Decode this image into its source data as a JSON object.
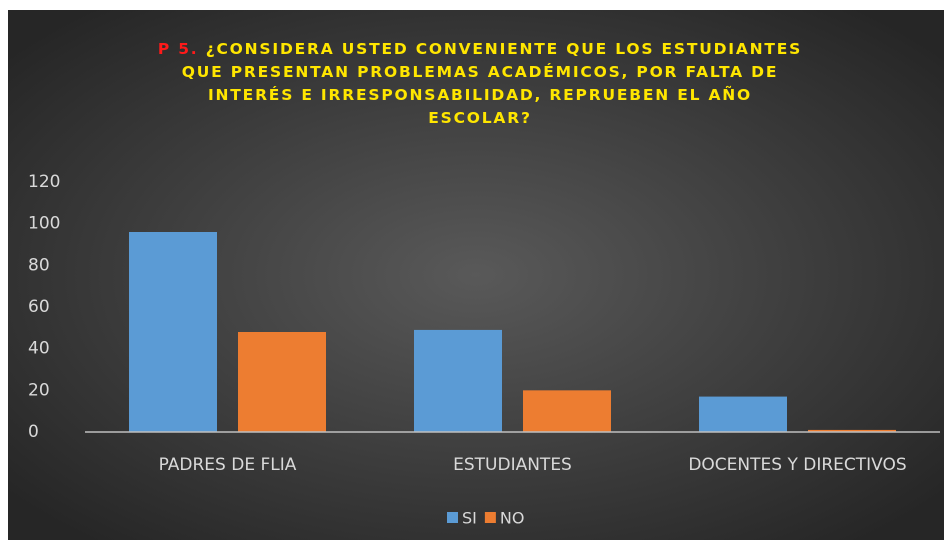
{
  "chart_data": {
    "type": "bar",
    "title_prefix": "P 5.",
    "title_lines": [
      "¿CONSIDERA USTED CONVENIENTE  QUE LOS ESTUDIANTES",
      "QUE PRESENTAN PROBLEMAS ACADÉMICOS, POR FALTA DE",
      "INTERÉS E IRRESPONSABILIDAD, REPRUEBEN EL AÑO",
      "ESCOLAR?"
    ],
    "categories": [
      "PADRES DE FLIA",
      "ESTUDIANTES",
      "DOCENTES Y DIRECTIVOS"
    ],
    "series": [
      {
        "name": "SI",
        "color": "#5b9bd5",
        "values": [
          96,
          49,
          17
        ]
      },
      {
        "name": "NO",
        "color": "#ed7d31",
        "values": [
          48,
          20,
          1
        ]
      }
    ],
    "ylim": [
      0,
      120
    ],
    "yticks": [
      0,
      20,
      40,
      60,
      80,
      100,
      120
    ],
    "grid": false,
    "legend": "bottom"
  }
}
